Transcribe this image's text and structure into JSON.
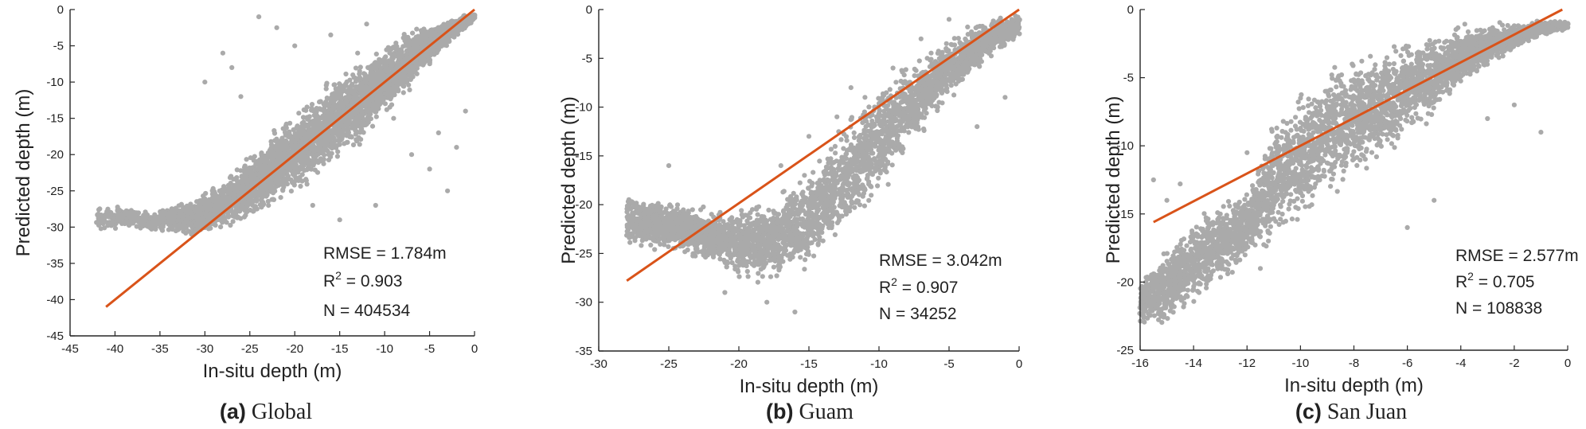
{
  "colors": {
    "points": "#aaaaaa",
    "fit_line": "#d95319",
    "axis": "#262626"
  },
  "chart_data": [
    {
      "type": "scatter",
      "panel": "a",
      "caption_letter": "(a)",
      "caption_name": "Global",
      "xlabel": "In-situ depth (m)",
      "ylabel": "Predicted depth (m)",
      "xlim": [
        -45,
        0
      ],
      "ylim": [
        -45,
        0
      ],
      "xticks": [
        -45,
        -40,
        -35,
        -30,
        -25,
        -20,
        -15,
        -10,
        -5,
        0
      ],
      "yticks": [
        0,
        -5,
        -10,
        -15,
        -20,
        -25,
        -30,
        -35,
        -40,
        -45
      ],
      "fit_line": [
        [
          -41,
          -41
        ],
        [
          0,
          0
        ]
      ],
      "stats": {
        "rmse": "RMSE = 1.784m",
        "r2_prefix": "R",
        "r2_sup": "2",
        "r2_value": " = 0.903",
        "n": "N = 404534"
      },
      "point_cloud": [
        [
          -42,
          -30.5,
          -27
        ],
        [
          -34,
          -31,
          -27
        ],
        [
          -31,
          -31.5,
          -26
        ],
        [
          -29,
          -31,
          -24
        ],
        [
          -26,
          -30,
          -21
        ],
        [
          -24,
          -29,
          -18.5
        ],
        [
          -22,
          -27.5,
          -16
        ],
        [
          -20,
          -26,
          -13.5
        ],
        [
          -18,
          -24.5,
          -11
        ],
        [
          -16,
          -22.5,
          -9
        ],
        [
          -14,
          -20.5,
          -7.5
        ],
        [
          -12,
          -18,
          -6
        ],
        [
          -10,
          -15.5,
          -4.5
        ],
        [
          -8,
          -12.5,
          -3
        ],
        [
          -6,
          -9.5,
          -2
        ],
        [
          -4,
          -6.5,
          -1.3
        ],
        [
          -2,
          -4,
          -0.8
        ],
        [
          0,
          -1.5,
          -0.5
        ]
      ],
      "outliers": [
        [
          -24,
          -1
        ],
        [
          -22,
          -2.5
        ],
        [
          -16,
          -3.5
        ],
        [
          -27,
          -8
        ],
        [
          -30,
          -10
        ],
        [
          -20,
          -5
        ],
        [
          -13,
          -6
        ],
        [
          -9,
          -15
        ],
        [
          -7,
          -20
        ],
        [
          -5,
          -22
        ],
        [
          -3,
          -25
        ],
        [
          -2,
          -19
        ],
        [
          -18,
          -27
        ],
        [
          -15,
          -29
        ],
        [
          -11,
          -27
        ],
        [
          -26,
          -12
        ],
        [
          -28,
          -6
        ],
        [
          -12,
          -2
        ],
        [
          -1,
          -14
        ],
        [
          -4,
          -17
        ]
      ]
    },
    {
      "type": "scatter",
      "panel": "b",
      "caption_letter": "(b)",
      "caption_name": "Guam",
      "xlabel": "In-situ depth (m)",
      "ylabel": "Predicted depth (m)",
      "xlim": [
        -30,
        0
      ],
      "ylim": [
        -35,
        0
      ],
      "xticks": [
        -30,
        -25,
        -20,
        -15,
        -10,
        -5,
        0
      ],
      "yticks": [
        0,
        -5,
        -10,
        -15,
        -20,
        -25,
        -30,
        -35
      ],
      "fit_line": [
        [
          -28,
          -27.8
        ],
        [
          0,
          0
        ]
      ],
      "stats": {
        "rmse": "RMSE = 3.042m",
        "r2_prefix": "R",
        "r2_sup": "2",
        "r2_value": " = 0.907",
        "n": "N = 34252"
      },
      "point_cloud": [
        [
          -28,
          -24.5,
          -18.5
        ],
        [
          -26,
          -25,
          -19
        ],
        [
          -24,
          -25.5,
          -19.5
        ],
        [
          -22,
          -26.5,
          -20
        ],
        [
          -20,
          -28,
          -19.5
        ],
        [
          -18,
          -28.5,
          -19
        ],
        [
          -16,
          -27.5,
          -17
        ],
        [
          -14,
          -26,
          -14
        ],
        [
          -12,
          -23,
          -10.5
        ],
        [
          -10,
          -19.5,
          -7.5
        ],
        [
          -8,
          -15.5,
          -5
        ],
        [
          -6,
          -11.5,
          -3
        ],
        [
          -4,
          -8,
          -1.5
        ],
        [
          -2,
          -5,
          -0.7
        ],
        [
          0,
          -3,
          -0.5
        ]
      ],
      "outliers": [
        [
          -13,
          -11
        ],
        [
          -11,
          -9
        ],
        [
          -15,
          -13
        ],
        [
          -17,
          -16
        ],
        [
          -12,
          -8
        ],
        [
          -9,
          -6
        ],
        [
          -21,
          -29
        ],
        [
          -18,
          -30
        ],
        [
          -7,
          -3
        ],
        [
          -5,
          -1
        ],
        [
          -3,
          -12
        ],
        [
          -1,
          -9
        ],
        [
          -16,
          -31
        ],
        [
          -25,
          -16
        ]
      ]
    },
    {
      "type": "scatter",
      "panel": "c",
      "caption_letter": "(c)",
      "caption_name": "San Juan",
      "xlabel": "In-situ depth (m)",
      "ylabel": "Predicted depth (m)",
      "xlim": [
        -16,
        0
      ],
      "ylim": [
        -25,
        0
      ],
      "xticks": [
        -16,
        -14,
        -12,
        -10,
        -8,
        -6,
        -4,
        -2,
        0
      ],
      "yticks": [
        0,
        -5,
        -10,
        -15,
        -20,
        -25
      ],
      "fit_line": [
        [
          -15.5,
          -15.6
        ],
        [
          -0.2,
          0
        ]
      ],
      "stats": {
        "rmse": "RMSE = 2.577m",
        "r2_prefix": "R",
        "r2_sup": "2",
        "r2_value": " = 0.705",
        "n": "N = 108838"
      },
      "point_cloud": [
        [
          -16,
          -23.5,
          -19.5
        ],
        [
          -15,
          -23.5,
          -17
        ],
        [
          -14,
          -22,
          -15
        ],
        [
          -13,
          -20.5,
          -14
        ],
        [
          -12,
          -18.5,
          -13
        ],
        [
          -11,
          -17.5,
          -7
        ],
        [
          -10,
          -16,
          -5.5
        ],
        [
          -9,
          -14.5,
          -4
        ],
        [
          -8,
          -13,
          -3
        ],
        [
          -7,
          -11.5,
          -2.3
        ],
        [
          -6,
          -10,
          -1.8
        ],
        [
          -5,
          -8,
          -1.3
        ],
        [
          -4,
          -6,
          -1.0
        ],
        [
          -3,
          -4.5,
          -0.9
        ],
        [
          -2,
          -3,
          -0.9
        ],
        [
          -1,
          -2,
          -0.8
        ],
        [
          0,
          -1.5,
          -0.8
        ]
      ],
      "outliers": [
        [
          -15.5,
          -12.5
        ],
        [
          -15,
          -14
        ],
        [
          -14.5,
          -12.8
        ],
        [
          -13,
          -15
        ],
        [
          -14,
          -17
        ],
        [
          -12,
          -10.5
        ],
        [
          -10,
          -6.5
        ],
        [
          -8.5,
          -9
        ],
        [
          -3,
          -8
        ],
        [
          -2,
          -7
        ],
        [
          -1,
          -9
        ],
        [
          -5,
          -14
        ],
        [
          -11.5,
          -19
        ],
        [
          -6,
          -16
        ]
      ]
    }
  ]
}
